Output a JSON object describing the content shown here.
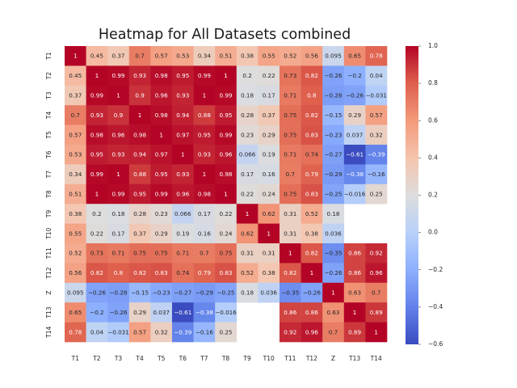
{
  "chart_data": {
    "type": "heatmap",
    "title": "Heatmap for All Datasets combined",
    "xlabel": "",
    "ylabel": "",
    "colormap": "coolwarm",
    "vmin": -0.6,
    "vmax": 1.0,
    "labels": [
      "T1",
      "T2",
      "T3",
      "T4",
      "T5",
      "T6",
      "T7",
      "T8",
      "T9",
      "T10",
      "T11",
      "T12",
      "Z",
      "T13",
      "T14"
    ],
    "matrix": [
      [
        1,
        0.45,
        0.37,
        0.7,
        0.57,
        0.53,
        0.34,
        0.51,
        0.38,
        0.55,
        0.52,
        0.56,
        0.095,
        0.65,
        0.78
      ],
      [
        0.45,
        1,
        0.99,
        0.93,
        0.98,
        0.95,
        0.99,
        1,
        0.2,
        0.22,
        0.73,
        0.82,
        -0.26,
        -0.2,
        0.04
      ],
      [
        0.37,
        0.99,
        1,
        0.9,
        0.96,
        0.93,
        1,
        0.99,
        0.18,
        0.17,
        0.71,
        0.8,
        -0.28,
        -0.26,
        -0.031
      ],
      [
        0.7,
        0.93,
        0.9,
        1,
        0.98,
        0.94,
        0.88,
        0.95,
        0.28,
        0.37,
        0.75,
        0.82,
        -0.15,
        0.29,
        0.57
      ],
      [
        0.57,
        0.98,
        0.96,
        0.98,
        1,
        0.97,
        0.95,
        0.99,
        0.23,
        0.29,
        0.75,
        0.83,
        -0.23,
        0.037,
        0.32
      ],
      [
        0.53,
        0.95,
        0.93,
        0.94,
        0.97,
        1,
        0.93,
        0.96,
        0.066,
        0.19,
        0.71,
        0.74,
        -0.27,
        -0.61,
        -0.39
      ],
      [
        0.34,
        0.99,
        1,
        0.88,
        0.95,
        0.93,
        1,
        0.98,
        0.17,
        0.16,
        0.7,
        0.79,
        -0.29,
        -0.38,
        -0.16
      ],
      [
        0.51,
        1,
        0.99,
        0.95,
        0.99,
        0.96,
        0.98,
        1,
        0.22,
        0.24,
        0.75,
        0.83,
        -0.25,
        -0.016,
        0.25
      ],
      [
        0.38,
        0.2,
        0.18,
        0.28,
        0.23,
        0.066,
        0.17,
        0.22,
        1,
        0.62,
        0.31,
        0.52,
        0.18,
        null,
        null
      ],
      [
        0.55,
        0.22,
        0.17,
        0.37,
        0.29,
        0.19,
        0.16,
        0.24,
        0.62,
        1,
        0.31,
        0.38,
        0.036,
        null,
        null
      ],
      [
        0.52,
        0.73,
        0.71,
        0.75,
        0.75,
        0.71,
        0.7,
        0.75,
        0.31,
        0.31,
        1,
        0.82,
        -0.35,
        0.86,
        0.92
      ],
      [
        0.56,
        0.82,
        0.8,
        0.82,
        0.83,
        0.74,
        0.79,
        0.83,
        0.52,
        0.38,
        0.82,
        1,
        -0.26,
        0.86,
        0.96
      ],
      [
        0.095,
        -0.26,
        -0.28,
        -0.15,
        -0.23,
        -0.27,
        -0.29,
        -0.25,
        0.18,
        0.036,
        -0.35,
        -0.26,
        1,
        0.63,
        0.7
      ],
      [
        0.65,
        -0.2,
        -0.26,
        0.29,
        0.037,
        -0.61,
        -0.38,
        -0.016,
        null,
        null,
        0.86,
        0.86,
        0.63,
        1,
        0.89
      ],
      [
        0.78,
        0.04,
        -0.031,
        0.57,
        0.32,
        -0.39,
        -0.16,
        0.25,
        null,
        null,
        0.92,
        0.96,
        0.7,
        0.89,
        1
      ]
    ],
    "colorbar_ticks": [
      -0.6,
      -0.4,
      -0.2,
      0.0,
      0.2,
      0.4,
      0.6,
      0.8,
      1.0
    ],
    "colorbar_tick_labels": [
      "−0.6",
      "−0.4",
      "−0.2",
      "0.0",
      "0.2",
      "0.4",
      "0.6",
      "0.8",
      "1.0"
    ]
  }
}
